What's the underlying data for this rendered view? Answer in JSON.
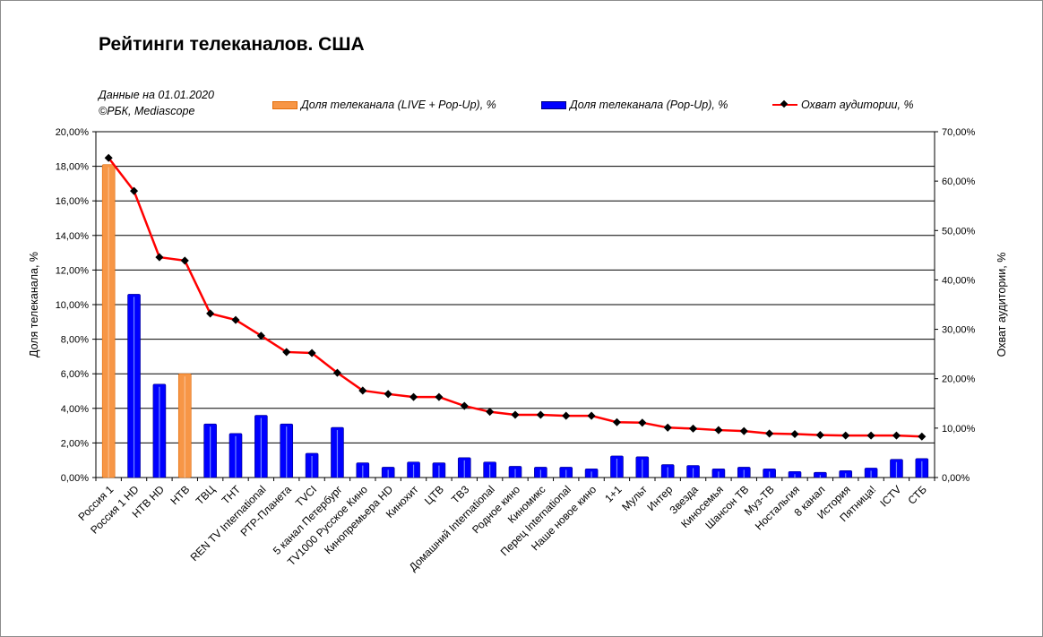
{
  "chart_data": {
    "type": "bar",
    "title": "Рейтинги телеканалов. США",
    "notes": [
      "Данные на 01.01.2020",
      "©РБК, Mediascope"
    ],
    "ylabel_left": "Доля телеканала, %",
    "ylabel_right": "Охват аудитории, %",
    "ylim_left": [
      0,
      20
    ],
    "ylim_right": [
      0,
      70
    ],
    "left_ticks": [
      "0,00%",
      "2,00%",
      "4,00%",
      "6,00%",
      "8,00%",
      "10,00%",
      "12,00%",
      "14,00%",
      "16,00%",
      "18,00%",
      "20,00%"
    ],
    "right_ticks": [
      "0,00%",
      "10,00%",
      "20,00%",
      "30,00%",
      "40,00%",
      "50,00%",
      "60,00%",
      "70,00%"
    ],
    "grid": true,
    "legend_position": "top",
    "categories": [
      "Россия 1",
      "Россия 1 HD",
      "НТВ HD",
      "НТВ",
      "ТВЦ",
      "ТНТ",
      "REN TV International",
      "РТР-Планета",
      "TVCI",
      "5 канал Петербург",
      "TV1000 Русское Кино",
      "Кинопремьера HD",
      "Кинохит",
      "ЦТВ",
      "ТВ3",
      "Домашний International",
      "Родное кино",
      "Киномикс",
      "Перец International",
      "Наше новое кино",
      "1+1",
      "Мульт",
      "Интер",
      "Звезда",
      "Киносемья",
      "Шансон ТВ",
      "Муз-ТВ",
      "Ностальгия",
      "8 канал",
      "История",
      "Пятница!",
      "ICTV",
      "СТБ"
    ],
    "series": [
      {
        "name": "Доля телеканала (LIVE + Pop-Up), %",
        "kind": "bar",
        "axis": "left",
        "color": "#f79646",
        "values": [
          18.1,
          null,
          null,
          6.0,
          null,
          null,
          null,
          null,
          null,
          null,
          null,
          null,
          null,
          null,
          null,
          null,
          null,
          null,
          null,
          null,
          null,
          null,
          null,
          null,
          null,
          null,
          null,
          null,
          null,
          null,
          null,
          null,
          null
        ]
      },
      {
        "name": "Доля телеканала (Pop-Up), %",
        "kind": "bar",
        "axis": "left",
        "color": "#0000ff",
        "values": [
          null,
          10.6,
          5.4,
          null,
          3.1,
          2.55,
          3.6,
          3.1,
          1.4,
          2.9,
          0.85,
          0.6,
          0.9,
          0.85,
          1.15,
          0.9,
          0.65,
          0.6,
          0.6,
          0.5,
          1.25,
          1.2,
          0.75,
          0.7,
          0.5,
          0.6,
          0.5,
          0.35,
          0.3,
          0.4,
          0.55,
          1.05,
          1.1
        ]
      },
      {
        "name": "Охват аудитории, %",
        "kind": "line",
        "axis": "right",
        "color": "#ff0000",
        "marker_color": "#000000",
        "values": [
          64.7,
          58.0,
          44.6,
          43.9,
          33.2,
          31.9,
          28.7,
          25.4,
          25.2,
          21.2,
          17.6,
          16.9,
          16.3,
          16.3,
          14.5,
          13.3,
          12.7,
          12.7,
          12.5,
          12.5,
          11.2,
          11.1,
          10.1,
          9.9,
          9.6,
          9.4,
          8.9,
          8.8,
          8.6,
          8.5,
          8.5,
          8.5,
          8.3
        ]
      }
    ]
  }
}
